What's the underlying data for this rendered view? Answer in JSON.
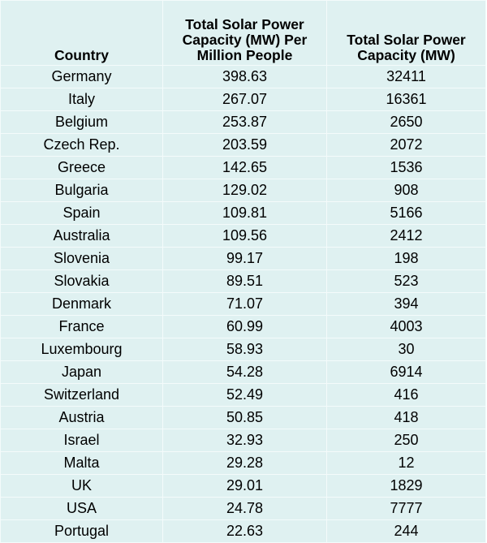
{
  "table": {
    "columns": [
      "Country",
      "Total Solar Power Capacity (MW) Per Million People",
      "Total Solar Power Capacity (MW)"
    ],
    "rows": [
      [
        "Germany",
        "398.63",
        "32411"
      ],
      [
        "Italy",
        "267.07",
        "16361"
      ],
      [
        "Belgium",
        "253.87",
        "2650"
      ],
      [
        "Czech Rep.",
        "203.59",
        "2072"
      ],
      [
        "Greece",
        "142.65",
        "1536"
      ],
      [
        "Bulgaria",
        "129.02",
        "908"
      ],
      [
        "Spain",
        "109.81",
        "5166"
      ],
      [
        "Australia",
        "109.56",
        "2412"
      ],
      [
        "Slovenia",
        "99.17",
        "198"
      ],
      [
        "Slovakia",
        "89.51",
        "523"
      ],
      [
        "Denmark",
        "71.07",
        "394"
      ],
      [
        "France",
        "60.99",
        "4003"
      ],
      [
        "Luxembourg",
        "58.93",
        "30"
      ],
      [
        "Japan",
        "54.28",
        "6914"
      ],
      [
        "Switzerland",
        "52.49",
        "416"
      ],
      [
        "Austria",
        "50.85",
        "418"
      ],
      [
        "Israel",
        "32.93",
        "250"
      ],
      [
        "Malta",
        "29.28",
        "12"
      ],
      [
        "UK",
        "29.01",
        "1829"
      ],
      [
        "USA",
        "24.78",
        "7777"
      ],
      [
        "Portugal",
        "22.63",
        "244"
      ]
    ]
  }
}
